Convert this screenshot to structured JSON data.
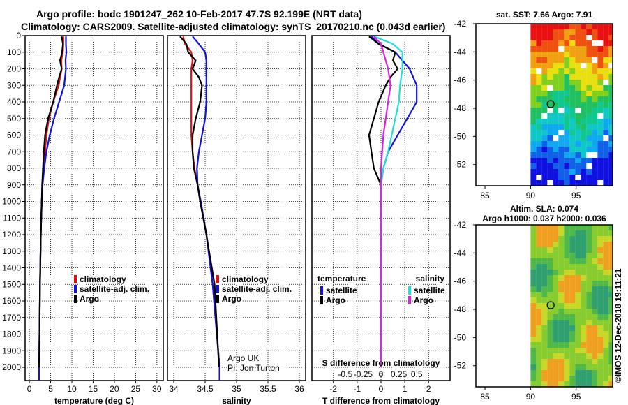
{
  "title_line1": "Argo profile: bodc 1901247_262 10-Feb-2017 47.7S 92.199E (NRT data)",
  "title_line2": "Climatology: CARS2009. Satellite-adjusted climatology: synTS_20170210.nc (0.043d earlier)",
  "credit": "©IMOS 12-Dec-2018 19:11:21",
  "colors": {
    "climatology": "#dd1111",
    "satellite": "#1111dd",
    "argo": "#000000",
    "sat_salinity": "#22dddd",
    "argo_salinity": "#dd22dd"
  },
  "chart_data": [
    {
      "type": "line",
      "name": "temperature",
      "xlabel": "temperature (deg C)",
      "xlim": [
        -1,
        31.5
      ],
      "xticks": [
        0,
        5,
        10,
        15,
        20,
        25,
        30
      ],
      "xtick_labels": [
        "0",
        "5",
        "10",
        "15",
        "20",
        "25",
        "30"
      ],
      "ylim": [
        2080,
        0
      ],
      "yticks": [
        0,
        100,
        200,
        300,
        400,
        500,
        600,
        700,
        800,
        900,
        1000,
        1100,
        1200,
        1300,
        1400,
        1500,
        1600,
        1700,
        1800,
        1900,
        2000
      ],
      "ytick_labels": [
        "0",
        "100",
        "200",
        "300",
        "400",
        "500",
        "600",
        "700",
        "800",
        "900",
        "1000",
        "1100",
        "1200",
        "1300",
        "1400",
        "1500",
        "1600",
        "1700",
        "1800",
        "1900",
        "2000"
      ],
      "legend": [
        "climatology",
        "satellite-adj. clim.",
        "Argo"
      ],
      "series": [
        {
          "name": "climatology",
          "color": "#dd1111",
          "depth": [
            5,
            50,
            100,
            150,
            200,
            300,
            400,
            500,
            600,
            700,
            800,
            900,
            1000,
            1200,
            1500,
            2000,
            2080
          ],
          "values": [
            8.0,
            8.0,
            7.9,
            7.5,
            7.6,
            6.9,
            5.6,
            4.6,
            4.0,
            3.7,
            3.4,
            3.1,
            2.9,
            2.7,
            2.5,
            2.3,
            2.3
          ]
        },
        {
          "name": "satellite-adj. clim.",
          "color": "#1111dd",
          "depth": [
            5,
            50,
            100,
            150,
            200,
            300,
            400,
            500,
            600,
            700,
            800,
            900,
            1000,
            1200,
            1500,
            2000,
            2080
          ],
          "values": [
            8.6,
            8.6,
            8.7,
            8.5,
            8.6,
            8.2,
            7.0,
            5.8,
            4.8,
            4.0,
            3.5,
            3.1,
            2.9,
            2.7,
            2.5,
            2.3,
            2.3
          ]
        },
        {
          "name": "Argo",
          "color": "#000000",
          "depth": [
            5,
            50,
            100,
            150,
            200,
            250,
            300,
            400,
            500,
            600,
            700,
            800,
            900,
            1000,
            1200,
            1500,
            2000
          ],
          "values": [
            7.6,
            7.9,
            7.7,
            7.2,
            7.6,
            7.0,
            6.5,
            5.6,
            4.4,
            3.7,
            3.4,
            3.2,
            3.0,
            2.9,
            2.7,
            2.5,
            2.3
          ]
        }
      ]
    },
    {
      "type": "line",
      "name": "salinity",
      "xlabel": "salinity",
      "xlim": [
        33.9,
        36.1
      ],
      "xticks": [
        34,
        34.5,
        35,
        35.5,
        36
      ],
      "xtick_labels": [
        "34",
        "34.5",
        "35",
        "35.5",
        "36"
      ],
      "ylim": [
        2080,
        0
      ],
      "legend": [
        "climatology",
        "satellite-adj. clim.",
        "Argo"
      ],
      "annotation": [
        "Argo UK",
        "PI: Jon Turton"
      ],
      "series": [
        {
          "name": "climatology",
          "color": "#dd1111",
          "depth": [
            5,
            50,
            100,
            150,
            200,
            300,
            400,
            500,
            600,
            700,
            800,
            900,
            1000,
            1200,
            1500,
            2000,
            2080
          ],
          "values": [
            34.15,
            34.18,
            34.28,
            34.3,
            34.28,
            34.28,
            34.28,
            34.28,
            34.28,
            34.3,
            34.33,
            34.38,
            34.43,
            34.52,
            34.62,
            34.73,
            34.73
          ]
        },
        {
          "name": "satellite-adj. clim.",
          "color": "#1111dd",
          "depth": [
            5,
            50,
            100,
            150,
            200,
            300,
            400,
            500,
            600,
            700,
            800,
            900,
            1000,
            1200,
            1500,
            2000,
            2080
          ],
          "values": [
            34.3,
            34.4,
            34.5,
            34.52,
            34.52,
            34.52,
            34.52,
            34.5,
            34.45,
            34.4,
            34.37,
            34.38,
            34.43,
            34.52,
            34.62,
            34.73,
            34.73
          ]
        },
        {
          "name": "Argo",
          "color": "#000000",
          "depth": [
            5,
            50,
            100,
            150,
            200,
            250,
            300,
            400,
            500,
            600,
            700,
            800,
            900,
            1000,
            1200,
            1500,
            2000
          ],
          "values": [
            34.1,
            34.2,
            34.23,
            34.35,
            34.3,
            34.4,
            34.45,
            34.42,
            34.35,
            34.3,
            34.3,
            34.32,
            34.38,
            34.42,
            34.52,
            34.65,
            34.72
          ]
        }
      ]
    },
    {
      "type": "line",
      "name": "difference",
      "xlabel": "T difference from climatology",
      "xlabel2": "S difference from climatology",
      "xlim": [
        -2.9,
        2.9
      ],
      "xticks": [
        -2,
        -1,
        0,
        1,
        2
      ],
      "xtick_labels": [
        "-2",
        "-1",
        "0",
        "1",
        "2"
      ],
      "xticks2": [
        -1.5,
        -0.75,
        0,
        0.75,
        1.5
      ],
      "xtick2_labels": [
        "-0.5",
        "-0.25",
        "0",
        "0.25",
        "0.5"
      ],
      "ylim": [
        2080,
        0
      ],
      "legend_temperature_title": "temperature",
      "legend_salinity_title": "salinity",
      "legend_temperature": [
        "satellite",
        "Argo"
      ],
      "legend_salinity": [
        "satellite",
        "Argo"
      ],
      "series": [
        {
          "name": "T satellite",
          "color": "#1111dd",
          "depth": [
            5,
            50,
            100,
            150,
            200,
            300,
            400,
            500,
            600,
            700,
            800,
            900,
            1000,
            1500,
            2000
          ],
          "values": [
            -0.4,
            -0.1,
            0.6,
            0.9,
            1.2,
            1.5,
            1.5,
            1.1,
            0.7,
            0.3,
            0.1,
            0.0,
            0.0,
            0.0,
            0.0
          ]
        },
        {
          "name": "T Argo",
          "color": "#000000",
          "depth": [
            5,
            50,
            100,
            150,
            200,
            250,
            300,
            400,
            500,
            600,
            700,
            800,
            900,
            1000,
            1500,
            2000
          ],
          "values": [
            -0.5,
            -0.1,
            0.6,
            0.5,
            0.7,
            0.4,
            0.2,
            -0.1,
            -0.3,
            -0.5,
            -0.4,
            -0.3,
            0.0,
            0.0,
            0.0,
            0.0
          ]
        },
        {
          "name": "S satellite",
          "color": "#22dddd",
          "depth": [
            5,
            50,
            100,
            150,
            200,
            300,
            400,
            500,
            600,
            700,
            800,
            900,
            1000,
            1200,
            1500,
            2000
          ],
          "values": [
            -0.3,
            0.5,
            0.9,
            0.9,
            0.9,
            0.8,
            0.75,
            0.6,
            0.45,
            0.3,
            0.1,
            0.0,
            0.0,
            0.0,
            0.0,
            0.0
          ]
        },
        {
          "name": "S Argo",
          "color": "#dd22dd",
          "depth": [
            5,
            50,
            100,
            150,
            200,
            300,
            400,
            500,
            600,
            700,
            800,
            900,
            1000,
            1200,
            1500,
            2000
          ],
          "values": [
            -0.3,
            0.0,
            0.1,
            0.2,
            0.3,
            0.4,
            0.3,
            0.2,
            0.1,
            0.05,
            0.0,
            0.0,
            0.0,
            0.0,
            0.0,
            0.0
          ]
        }
      ]
    },
    {
      "type": "heatmap",
      "name": "sst_map",
      "title": "sat. SST: 7.66 Argo: 7.91",
      "xlim": [
        84,
        99
      ],
      "ylim": [
        -53.5,
        -42
      ],
      "xticks": [
        85,
        90,
        95
      ],
      "xtick_labels": [
        "85",
        "90",
        "95"
      ],
      "yticks": [
        -42,
        -44,
        -46,
        -48,
        -50,
        -52
      ],
      "ytick_labels": [
        "-42",
        "-44",
        "-46",
        "-48",
        "-50",
        "-52"
      ],
      "data_xlim": [
        90,
        99
      ],
      "marker": {
        "lon": 92.2,
        "lat": -47.7
      }
    },
    {
      "type": "heatmap",
      "name": "sla_map",
      "title": "Altim. SLA: 0.074",
      "subtitle": "Argo h1000: 0.037 h2000: 0.036",
      "xlim": [
        84,
        99
      ],
      "ylim": [
        -53.5,
        -42
      ],
      "xticks": [
        85,
        90,
        95
      ],
      "xtick_labels": [
        "85",
        "90",
        "95"
      ],
      "yticks": [
        -42,
        -44,
        -46,
        -48,
        -50,
        -52
      ],
      "ytick_labels": [
        "-42",
        "-44",
        "-46",
        "-48",
        "-50",
        "-52"
      ],
      "data_xlim": [
        90,
        99
      ],
      "marker": {
        "lon": 92.2,
        "lat": -47.7
      }
    }
  ]
}
